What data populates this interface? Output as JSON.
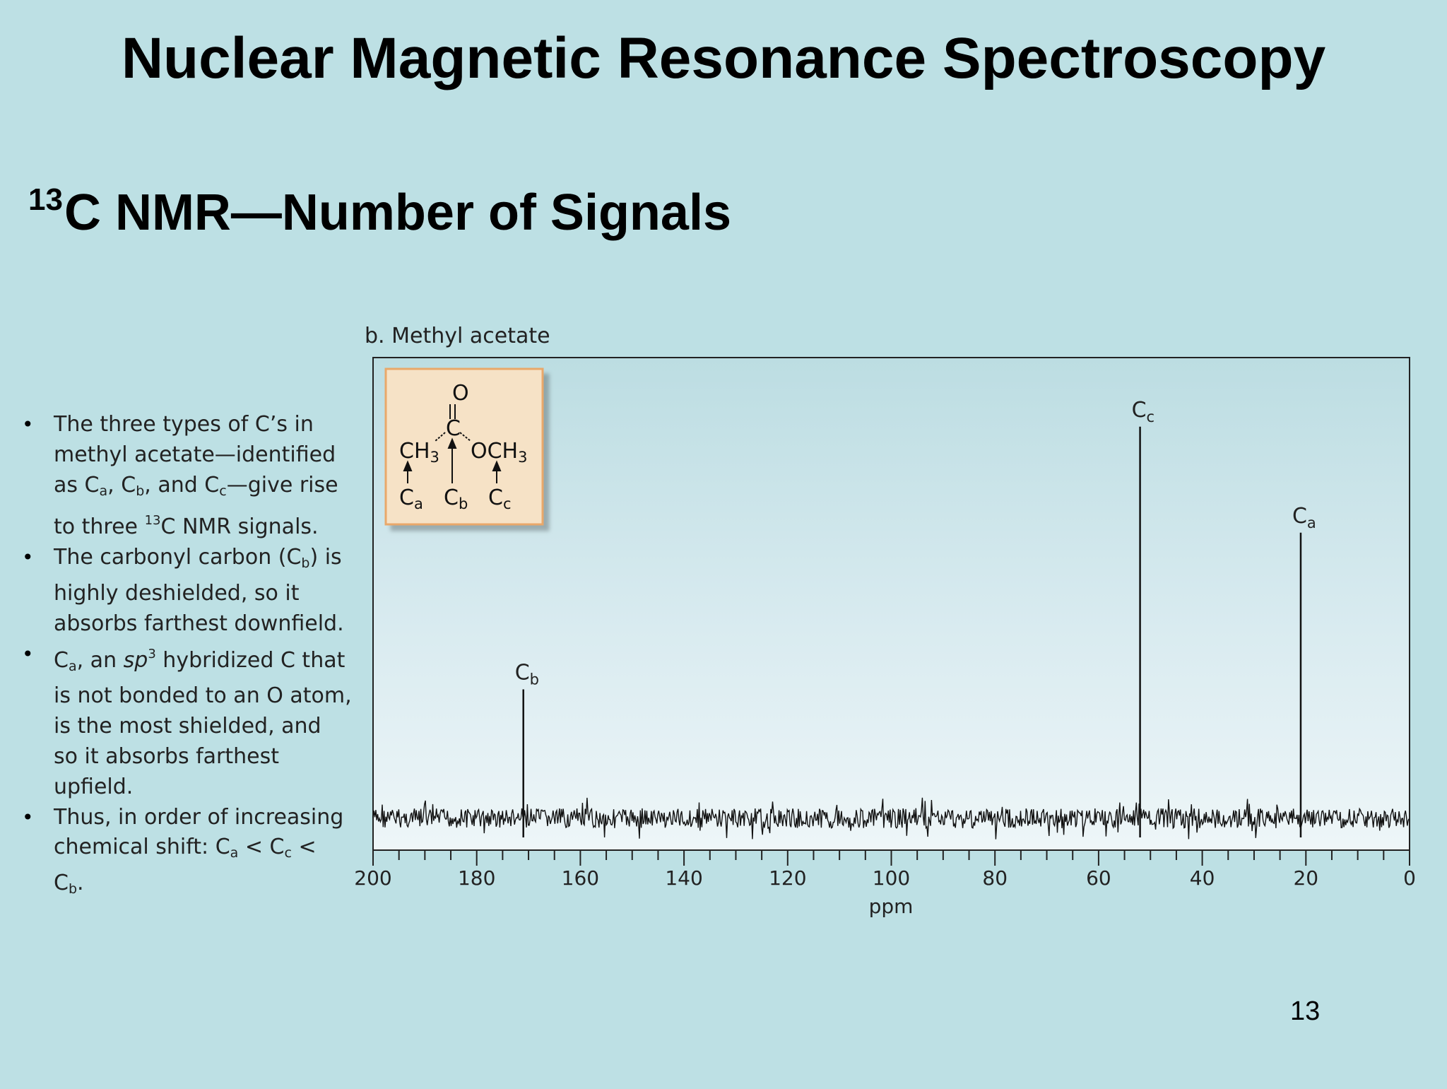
{
  "slide": {
    "title": "Nuclear Magnetic Resonance Spectroscopy",
    "subtitle_sup": "13",
    "subtitle_text": "C NMR—Number of Signals",
    "page_number": "13"
  },
  "bullets": [
    {
      "parts": [
        {
          "t": "The three types of C’s in methyl acetate—identified as C"
        },
        {
          "sub": "a"
        },
        {
          "t": ", C"
        },
        {
          "sub": "b"
        },
        {
          "t": ", and C"
        },
        {
          "sub": "c"
        },
        {
          "t": "—give rise to three "
        },
        {
          "sup": "13"
        },
        {
          "t": "C NMR signals."
        }
      ]
    },
    {
      "parts": [
        {
          "t": "The carbonyl carbon (C"
        },
        {
          "sub": "b"
        },
        {
          "t": ") is highly deshielded, so it absorbs farthest downfield."
        }
      ]
    },
    {
      "parts": [
        {
          "t": "C"
        },
        {
          "sub": "a"
        },
        {
          "t": ", an "
        },
        {
          "i": "sp"
        },
        {
          "sup": "3"
        },
        {
          "t": " hybridized C that is not bonded to an O atom, is the most shielded, and so it absorbs farthest upfield."
        }
      ]
    },
    {
      "parts": [
        {
          "t": "Thus, in order of increasing chemical shift: C"
        },
        {
          "sub": "a"
        },
        {
          "t": " < C"
        },
        {
          "sub": "c"
        },
        {
          "t": " < C"
        },
        {
          "sub": "b"
        },
        {
          "t": "."
        }
      ]
    }
  ],
  "chart_data": {
    "type": "line",
    "title": "b. Methyl acetate",
    "xlabel": "ppm",
    "ylabel": "",
    "xlim": [
      200,
      0
    ],
    "x_reversed": true,
    "x_ticks": [
      200,
      180,
      160,
      140,
      120,
      100,
      80,
      60,
      40,
      20,
      0
    ],
    "grid": false,
    "series": [
      {
        "name": "",
        "peaks": [
          {
            "label_main": "C",
            "label_sub": "b",
            "x": 171,
            "height": 0.28
          },
          {
            "label_main": "C",
            "label_sub": "c",
            "x": 52,
            "height": 0.85
          },
          {
            "label_main": "C",
            "label_sub": "a",
            "x": 21,
            "height": 0.62
          }
        ]
      }
    ],
    "structure_inset": {
      "atoms": {
        "O": "O",
        "C": "C",
        "CH": "CH",
        "OCH": "OCH",
        "three": "3",
        "labels": [
          {
            "main": "C",
            "sub": "a"
          },
          {
            "main": "C",
            "sub": "b"
          },
          {
            "main": "C",
            "sub": "c"
          }
        ]
      },
      "colors": {
        "fill": "#f6e2c6",
        "border": "#e9a86a"
      }
    }
  }
}
